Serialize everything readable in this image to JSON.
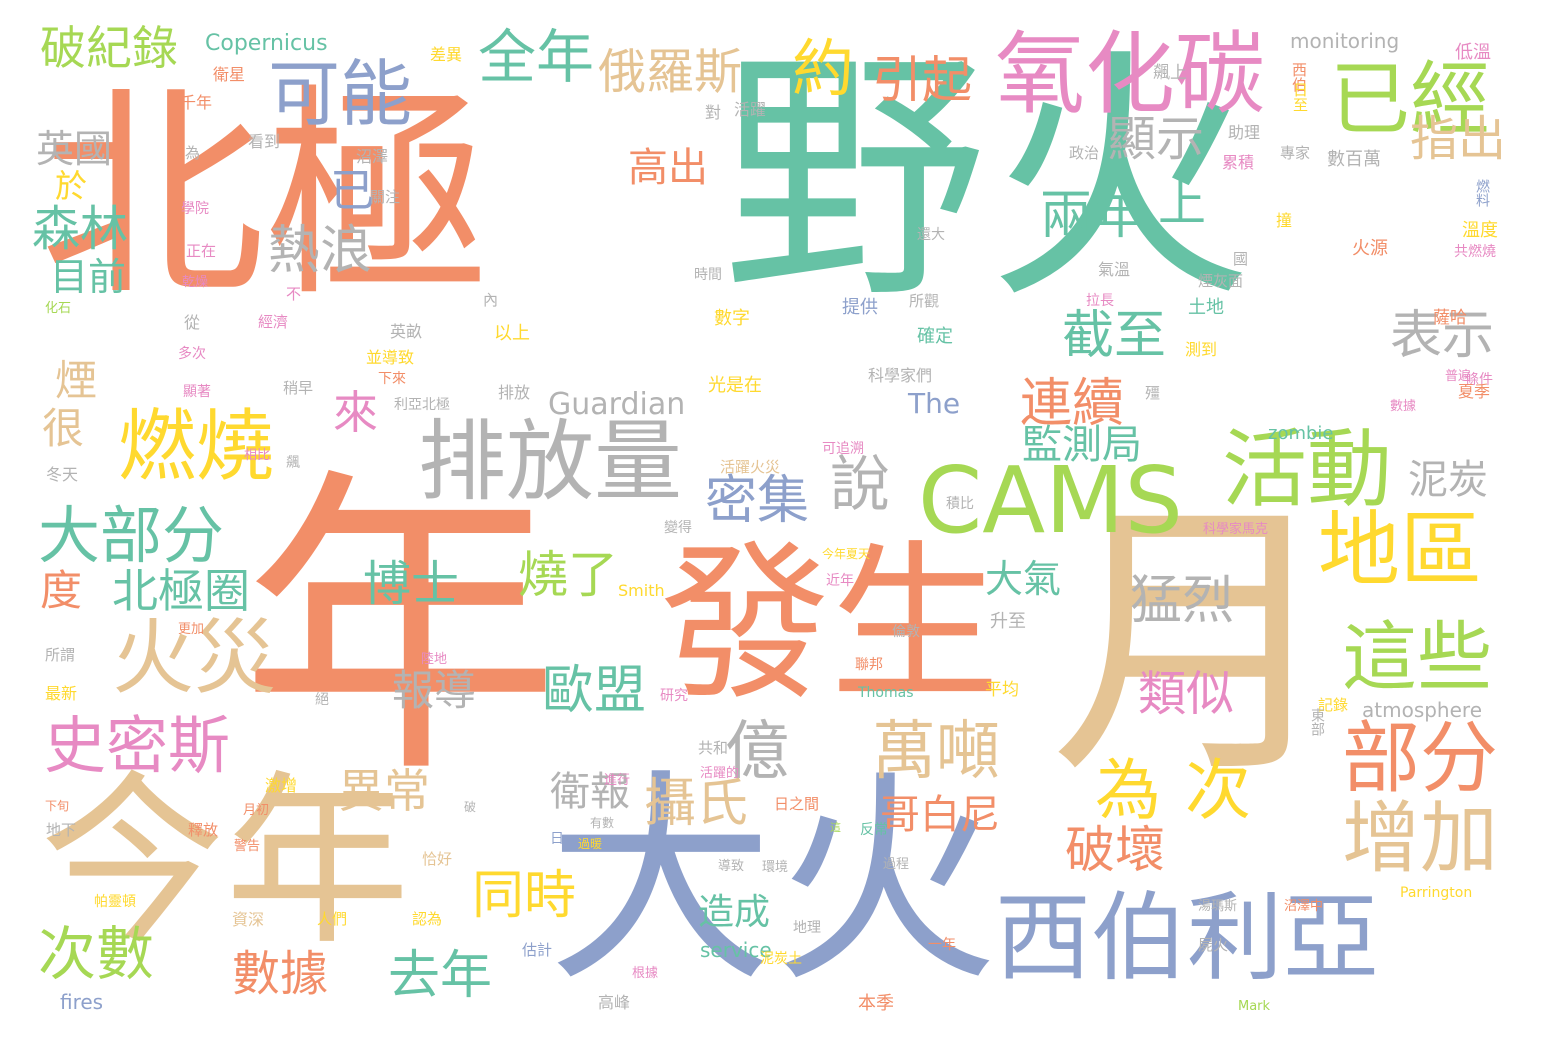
{
  "palette": {
    "orange": "#f28e68",
    "teal": "#66c2a5",
    "blue": "#8da0cb",
    "tan": "#e5c494",
    "yellow": "#ffd92f",
    "green": "#a6d854",
    "pink": "#e78ac3",
    "gray": "#b3b3b3"
  },
  "words": [
    {
      "text": "北極",
      "color": "orange"
    },
    {
      "text": "野火",
      "color": "teal"
    },
    {
      "text": "年",
      "color": "orange"
    },
    {
      "text": "月",
      "color": "tan"
    },
    {
      "text": "大火",
      "color": "blue"
    },
    {
      "text": "今年",
      "color": "tan"
    },
    {
      "text": "發生",
      "color": "orange"
    },
    {
      "text": "氧化碳",
      "color": "pink"
    },
    {
      "text": "排放量",
      "color": "gray"
    },
    {
      "text": "西伯利亞",
      "color": "blue"
    },
    {
      "text": "CAMS",
      "color": "green"
    },
    {
      "text": "已經",
      "color": "green"
    },
    {
      "text": "活動",
      "color": "green"
    },
    {
      "text": "地區",
      "color": "yellow"
    },
    {
      "text": "這些",
      "color": "green"
    },
    {
      "text": "部分",
      "color": "orange"
    },
    {
      "text": "增加",
      "color": "tan"
    },
    {
      "text": "燃燒",
      "color": "yellow"
    },
    {
      "text": "大部分",
      "color": "teal"
    },
    {
      "text": "火災",
      "color": "tan"
    },
    {
      "text": "史密斯",
      "color": "pink"
    },
    {
      "text": "可能",
      "color": "blue"
    },
    {
      "text": "約",
      "color": "yellow"
    },
    {
      "text": "引起",
      "color": "orange"
    },
    {
      "text": "全年",
      "color": "teal"
    },
    {
      "text": "俄羅斯",
      "color": "tan"
    },
    {
      "text": "破紀錄",
      "color": "green"
    },
    {
      "text": "億",
      "color": "gray"
    },
    {
      "text": "萬噸",
      "color": "tan"
    },
    {
      "text": "為",
      "color": "yellow"
    },
    {
      "text": "次",
      "color": "yellow"
    },
    {
      "text": "熱浪",
      "color": "gray"
    },
    {
      "text": "說",
      "color": "gray"
    },
    {
      "text": "密集",
      "color": "blue"
    },
    {
      "text": "表示",
      "color": "gray"
    },
    {
      "text": "截至",
      "color": "teal"
    },
    {
      "text": "連續",
      "color": "orange"
    },
    {
      "text": "顯示",
      "color": "gray"
    },
    {
      "text": "指出",
      "color": "tan"
    },
    {
      "text": "兩年",
      "color": "teal"
    },
    {
      "text": "上",
      "color": "teal"
    },
    {
      "text": "泥炭",
      "color": "gray"
    },
    {
      "text": "監測局",
      "color": "teal"
    },
    {
      "text": "森林",
      "color": "teal"
    },
    {
      "text": "已",
      "color": "blue"
    },
    {
      "text": "來",
      "color": "pink"
    },
    {
      "text": "高出",
      "color": "orange"
    },
    {
      "text": "目前",
      "color": "teal"
    },
    {
      "text": "英國",
      "color": "gray"
    },
    {
      "text": "於",
      "color": "yellow"
    },
    {
      "text": "煙",
      "color": "tan"
    },
    {
      "text": "很",
      "color": "tan"
    },
    {
      "text": "度",
      "color": "orange"
    },
    {
      "text": "北極圈",
      "color": "teal"
    },
    {
      "text": "博士",
      "color": "teal"
    },
    {
      "text": "燒了",
      "color": "green"
    },
    {
      "text": "歐盟",
      "color": "teal"
    },
    {
      "text": "報導",
      "color": "gray"
    },
    {
      "text": "異常",
      "color": "tan"
    },
    {
      "text": "攝氏",
      "color": "tan"
    },
    {
      "text": "衛報",
      "color": "gray"
    },
    {
      "text": "哥白尼",
      "color": "orange"
    },
    {
      "text": "破壞",
      "color": "orange"
    },
    {
      "text": "類似",
      "color": "pink"
    },
    {
      "text": "猛烈",
      "color": "gray"
    },
    {
      "text": "大氣",
      "color": "teal"
    },
    {
      "text": "同時",
      "color": "yellow"
    },
    {
      "text": "數據",
      "color": "orange"
    },
    {
      "text": "去年",
      "color": "teal"
    },
    {
      "text": "次數",
      "color": "green"
    },
    {
      "text": "造成",
      "color": "teal"
    },
    {
      "text": "Guardian",
      "color": "gray"
    },
    {
      "text": "The",
      "color": "blue"
    },
    {
      "text": "Copernicus",
      "color": "teal"
    },
    {
      "text": "monitoring",
      "color": "gray"
    },
    {
      "text": "atmosphere",
      "color": "gray"
    },
    {
      "text": "service",
      "color": "teal"
    },
    {
      "text": "fires",
      "color": "blue"
    },
    {
      "text": "zombie",
      "color": "teal"
    },
    {
      "text": "Smith",
      "color": "yellow"
    },
    {
      "text": "Thomas",
      "color": "teal"
    },
    {
      "text": "Mark",
      "color": "green"
    },
    {
      "text": "Parrington",
      "color": "yellow"
    },
    {
      "text": "飆上",
      "color": "gray"
    },
    {
      "text": "差異",
      "color": "yellow"
    },
    {
      "text": "衛星",
      "color": "orange"
    },
    {
      "text": "千年",
      "color": "orange"
    },
    {
      "text": "低溫",
      "color": "pink"
    },
    {
      "text": "西伯",
      "color": "orange"
    },
    {
      "text": "日至",
      "color": "yellow"
    },
    {
      "text": "對",
      "color": "gray"
    },
    {
      "text": "活躍",
      "color": "gray"
    },
    {
      "text": "看到",
      "color": "gray"
    },
    {
      "text": "為",
      "color": "gray"
    },
    {
      "text": "沼澤",
      "color": "gray"
    },
    {
      "text": "助理",
      "color": "gray"
    },
    {
      "text": "專家",
      "color": "gray"
    },
    {
      "text": "政治",
      "color": "gray"
    },
    {
      "text": "數百萬",
      "color": "gray"
    },
    {
      "text": "累積",
      "color": "pink"
    },
    {
      "text": "燃料",
      "color": "blue"
    },
    {
      "text": "學院",
      "color": "pink"
    },
    {
      "text": "關注",
      "color": "gray"
    },
    {
      "text": "撞",
      "color": "yellow"
    },
    {
      "text": "溫度",
      "color": "yellow"
    },
    {
      "text": "還大",
      "color": "gray"
    },
    {
      "text": "正在",
      "color": "pink"
    },
    {
      "text": "國",
      "color": "gray"
    },
    {
      "text": "火源",
      "color": "orange"
    },
    {
      "text": "共燃燒",
      "color": "pink"
    },
    {
      "text": "時間",
      "color": "gray"
    },
    {
      "text": "氣溫",
      "color": "gray"
    },
    {
      "text": "煙灰面",
      "color": "gray"
    },
    {
      "text": "乾燥",
      "color": "pink"
    },
    {
      "text": "不",
      "color": "pink"
    },
    {
      "text": "內",
      "color": "gray"
    },
    {
      "text": "拉長",
      "color": "pink"
    },
    {
      "text": "所觀",
      "color": "gray"
    },
    {
      "text": "化石",
      "color": "green"
    },
    {
      "text": "從",
      "color": "gray"
    },
    {
      "text": "經濟",
      "color": "pink"
    },
    {
      "text": "數字",
      "color": "yellow"
    },
    {
      "text": "提供",
      "color": "blue"
    },
    {
      "text": "土地",
      "color": "teal"
    },
    {
      "text": "薩哈",
      "color": "orange"
    },
    {
      "text": "英畝",
      "color": "gray"
    },
    {
      "text": "以上",
      "color": "yellow"
    },
    {
      "text": "確定",
      "color": "teal"
    },
    {
      "text": "測到",
      "color": "yellow"
    },
    {
      "text": "多次",
      "color": "pink"
    },
    {
      "text": "並導致",
      "color": "yellow"
    },
    {
      "text": "下來",
      "color": "orange"
    },
    {
      "text": "科學家們",
      "color": "gray"
    },
    {
      "text": "條件",
      "color": "pink"
    },
    {
      "text": "顯著",
      "color": "pink"
    },
    {
      "text": "稍早",
      "color": "gray"
    },
    {
      "text": "光是在",
      "color": "yellow"
    },
    {
      "text": "普遍",
      "color": "pink"
    },
    {
      "text": "夏季",
      "color": "orange"
    },
    {
      "text": "利亞北極",
      "color": "gray"
    },
    {
      "text": "排放",
      "color": "gray"
    },
    {
      "text": "殭",
      "color": "gray"
    },
    {
      "text": "數據",
      "color": "pink"
    },
    {
      "text": "冬天",
      "color": "gray"
    },
    {
      "text": "相比",
      "color": "pink"
    },
    {
      "text": "可追溯",
      "color": "pink"
    },
    {
      "text": "飆",
      "color": "gray"
    },
    {
      "text": "活躍火災",
      "color": "tan"
    },
    {
      "text": "積比",
      "color": "gray"
    },
    {
      "text": "變得",
      "color": "gray"
    },
    {
      "text": "科學家馬克",
      "color": "pink"
    },
    {
      "text": "今年夏天",
      "color": "yellow"
    },
    {
      "text": "近年",
      "color": "pink"
    },
    {
      "text": "更加",
      "color": "orange"
    },
    {
      "text": "倫敦",
      "color": "gray"
    },
    {
      "text": "升至",
      "color": "gray"
    },
    {
      "text": "所謂",
      "color": "gray"
    },
    {
      "text": "聯邦",
      "color": "orange"
    },
    {
      "text": "陸地",
      "color": "pink"
    },
    {
      "text": "最新",
      "color": "yellow"
    },
    {
      "text": "研究",
      "color": "pink"
    },
    {
      "text": "平均",
      "color": "yellow"
    },
    {
      "text": "絕",
      "color": "gray"
    },
    {
      "text": "記錄",
      "color": "yellow"
    },
    {
      "text": "東部",
      "color": "gray"
    },
    {
      "text": "共和",
      "color": "gray"
    },
    {
      "text": "活躍的",
      "color": "pink"
    },
    {
      "text": "日之間",
      "color": "orange"
    },
    {
      "text": "激增",
      "color": "yellow"
    },
    {
      "text": "進行",
      "color": "pink"
    },
    {
      "text": "下旬",
      "color": "orange"
    },
    {
      "text": "月初",
      "color": "orange"
    },
    {
      "text": "破",
      "color": "gray"
    },
    {
      "text": "有數",
      "color": "gray"
    },
    {
      "text": "這",
      "color": "green"
    },
    {
      "text": "反常",
      "color": "teal"
    },
    {
      "text": "地下",
      "color": "gray"
    },
    {
      "text": "釋放",
      "color": "orange"
    },
    {
      "text": "日",
      "color": "blue"
    },
    {
      "text": "過暖",
      "color": "yellow"
    },
    {
      "text": "恰好",
      "color": "tan"
    },
    {
      "text": "過程",
      "color": "gray"
    },
    {
      "text": "環境",
      "color": "gray"
    },
    {
      "text": "警告",
      "color": "orange"
    },
    {
      "text": "導致",
      "color": "gray"
    },
    {
      "text": "沼澤中",
      "color": "orange"
    },
    {
      "text": "帕靈頓",
      "color": "yellow"
    },
    {
      "text": "資深",
      "color": "tan"
    },
    {
      "text": "人們",
      "color": "yellow"
    },
    {
      "text": "認為",
      "color": "yellow"
    },
    {
      "text": "地理",
      "color": "gray"
    },
    {
      "text": "湯瑪斯",
      "color": "gray"
    },
    {
      "text": "一年",
      "color": "orange"
    },
    {
      "text": "估計",
      "color": "blue"
    },
    {
      "text": "泥炭土",
      "color": "yellow"
    },
    {
      "text": "屍火",
      "color": "gray"
    },
    {
      "text": "根據",
      "color": "pink"
    },
    {
      "text": "高峰",
      "color": "gray"
    },
    {
      "text": "本季",
      "color": "orange"
    }
  ]
}
